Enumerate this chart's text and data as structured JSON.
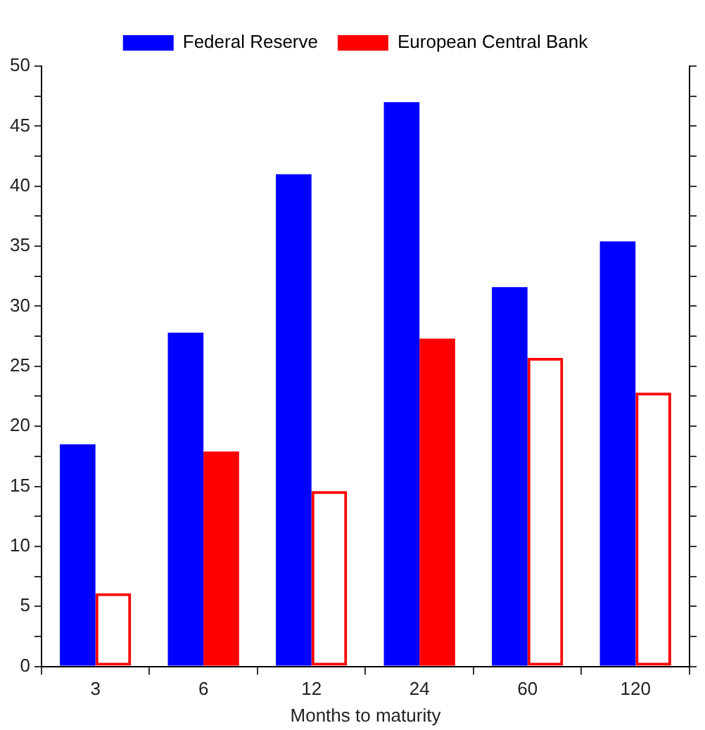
{
  "chart_data": {
    "type": "bar",
    "xlabel": "Months to maturity",
    "categories": [
      "3",
      "6",
      "12",
      "24",
      "60",
      "120"
    ],
    "series": [
      {
        "name": "Federal Reserve",
        "color": "#0000ff",
        "values": [
          18.5,
          27.8,
          41.0,
          47.0,
          31.6,
          35.4
        ]
      },
      {
        "name": "European Central Bank",
        "color": "#ff0000",
        "colors": [
          null,
          "#ff0000",
          null,
          "#ff0000",
          null,
          null
        ],
        "values": [
          6.1,
          17.9,
          14.6,
          27.3,
          25.7,
          22.8
        ]
      }
    ],
    "ylim": [
      0,
      50
    ],
    "yticks": [
      0,
      {
        "value": 2.5,
        "label": null
      },
      5,
      {
        "value": 7.5,
        "label": null
      },
      10,
      {
        "value": 12.5,
        "label": null
      },
      15,
      {
        "value": 17.5,
        "label": null
      },
      20,
      {
        "value": 22.5,
        "label": null
      },
      25,
      {
        "value": 27.5,
        "label": null
      },
      30,
      {
        "value": 32.5,
        "label": null
      },
      35,
      {
        "value": 37.5,
        "label": null
      },
      40,
      {
        "value": 42.5,
        "label": null
      },
      45,
      {
        "value": 47.5,
        "label": null
      },
      50
    ],
    "grid": false,
    "legend": "top"
  }
}
